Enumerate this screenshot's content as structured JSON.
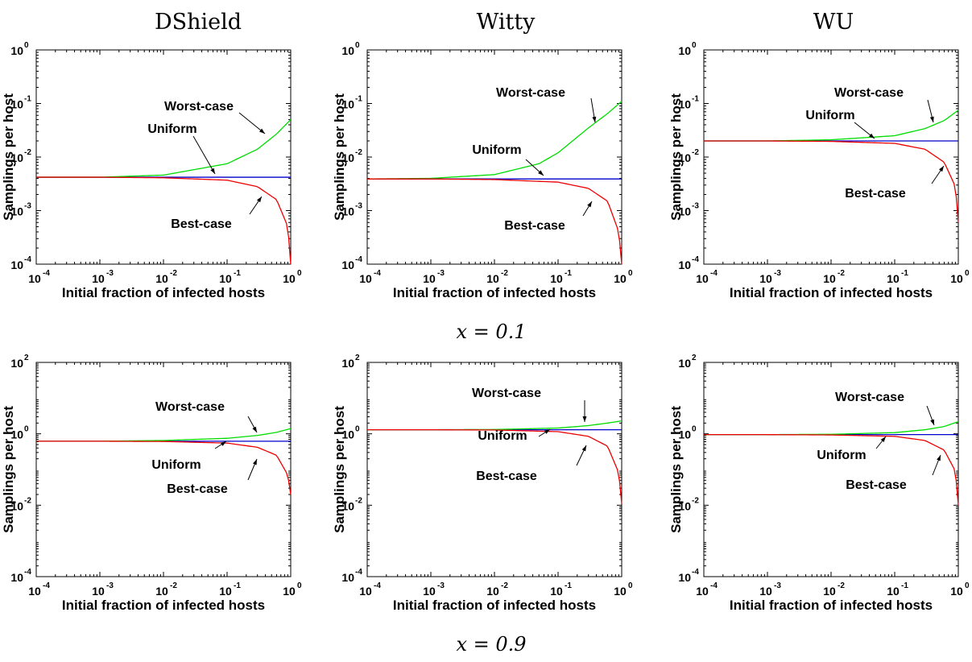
{
  "columns": [
    "DShield",
    "Witty",
    "WU"
  ],
  "rows": [
    {
      "label": "x = 0.1"
    },
    {
      "label": "x = 0.9"
    }
  ],
  "colors": {
    "worst": "#00dd00",
    "uniform": "#0000cc",
    "best": "#ee0000",
    "axes": "#000000"
  },
  "chart_data": [
    {
      "type": "line",
      "column": "DShield",
      "row": "x = 0.1",
      "xlabel": "Initial fraction of infected hosts",
      "ylabel": "Samplings per host",
      "xscale": "log",
      "yscale": "log",
      "xlim": [
        0.0001,
        1
      ],
      "ylim": [
        0.0001,
        1
      ],
      "series": [
        {
          "name": "Worst-case",
          "x": [
            0.0001,
            0.001,
            0.01,
            0.1,
            0.3,
            0.6,
            1
          ],
          "y": [
            0.0042,
            0.0042,
            0.0046,
            0.0075,
            0.014,
            0.027,
            0.05
          ]
        },
        {
          "name": "Uniform",
          "x": [
            0.0001,
            1
          ],
          "y": [
            0.0042,
            0.0042
          ]
        },
        {
          "name": "Best-case",
          "x": [
            0.0001,
            0.001,
            0.01,
            0.1,
            0.3,
            0.6,
            0.9,
            1
          ],
          "y": [
            0.0042,
            0.0042,
            0.0041,
            0.0037,
            0.0028,
            0.0016,
            0.0005,
            0.0001
          ]
        }
      ]
    },
    {
      "type": "line",
      "column": "Witty",
      "row": "x = 0.1",
      "xlabel": "Initial fraction of infected hosts",
      "ylabel": "Samplings per host",
      "xscale": "log",
      "yscale": "log",
      "xlim": [
        0.0001,
        1
      ],
      "ylim": [
        0.0001,
        1
      ],
      "series": [
        {
          "name": "Worst-case",
          "x": [
            0.0001,
            0.001,
            0.01,
            0.05,
            0.1,
            0.3,
            0.6,
            1
          ],
          "y": [
            0.0039,
            0.004,
            0.0047,
            0.0075,
            0.012,
            0.035,
            0.065,
            0.11
          ]
        },
        {
          "name": "Uniform",
          "x": [
            0.0001,
            1
          ],
          "y": [
            0.0039,
            0.0039
          ]
        },
        {
          "name": "Best-case",
          "x": [
            0.0001,
            0.001,
            0.01,
            0.1,
            0.3,
            0.6,
            0.9,
            1
          ],
          "y": [
            0.0039,
            0.0039,
            0.0038,
            0.0034,
            0.0026,
            0.0015,
            0.0004,
            0.0001
          ]
        }
      ]
    },
    {
      "type": "line",
      "column": "WU",
      "row": "x = 0.1",
      "xlabel": "Initial fraction of infected hosts",
      "ylabel": "Samplings per host",
      "xscale": "log",
      "yscale": "log",
      "xlim": [
        0.0001,
        1
      ],
      "ylim": [
        0.0001,
        1
      ],
      "series": [
        {
          "name": "Worst-case",
          "x": [
            0.0001,
            0.001,
            0.01,
            0.1,
            0.3,
            0.6,
            1
          ],
          "y": [
            0.02,
            0.02,
            0.021,
            0.025,
            0.034,
            0.048,
            0.075
          ]
        },
        {
          "name": "Uniform",
          "x": [
            0.0001,
            1
          ],
          "y": [
            0.02,
            0.02
          ]
        },
        {
          "name": "Best-case",
          "x": [
            0.0001,
            0.001,
            0.01,
            0.1,
            0.3,
            0.6,
            0.9,
            1
          ],
          "y": [
            0.02,
            0.02,
            0.0196,
            0.018,
            0.014,
            0.008,
            0.0028,
            0.0006
          ]
        }
      ]
    },
    {
      "type": "line",
      "column": "DShield",
      "row": "x = 0.9",
      "xlabel": "Initial fraction of infected hosts",
      "ylabel": "Samplings per host",
      "xscale": "log",
      "yscale": "log",
      "xlim": [
        0.0001,
        1
      ],
      "ylim": [
        0.0001,
        100
      ],
      "series": [
        {
          "name": "Worst-case",
          "x": [
            0.0001,
            0.001,
            0.01,
            0.1,
            0.3,
            0.6,
            1
          ],
          "y": [
            0.62,
            0.62,
            0.65,
            0.75,
            0.9,
            1.1,
            1.4
          ]
        },
        {
          "name": "Uniform",
          "x": [
            0.0001,
            1
          ],
          "y": [
            0.62,
            0.62
          ]
        },
        {
          "name": "Best-case",
          "x": [
            0.0001,
            0.001,
            0.01,
            0.1,
            0.3,
            0.6,
            0.9,
            1
          ],
          "y": [
            0.62,
            0.62,
            0.61,
            0.55,
            0.42,
            0.25,
            0.07,
            0.02
          ]
        }
      ]
    },
    {
      "type": "line",
      "column": "Witty",
      "row": "x = 0.9",
      "xlabel": "Initial fraction of infected hosts",
      "ylabel": "Samplings per host",
      "xscale": "log",
      "yscale": "log",
      "xlim": [
        0.0001,
        1
      ],
      "ylim": [
        0.0001,
        100
      ],
      "series": [
        {
          "name": "Worst-case",
          "x": [
            0.0001,
            0.001,
            0.01,
            0.1,
            0.3,
            0.6,
            1
          ],
          "y": [
            1.3,
            1.3,
            1.32,
            1.45,
            1.7,
            2.0,
            2.3
          ]
        },
        {
          "name": "Uniform",
          "x": [
            0.0001,
            1
          ],
          "y": [
            1.3,
            1.3
          ]
        },
        {
          "name": "Best-case",
          "x": [
            0.0001,
            0.001,
            0.01,
            0.1,
            0.3,
            0.6,
            0.9,
            1
          ],
          "y": [
            1.3,
            1.3,
            1.28,
            1.15,
            0.85,
            0.45,
            0.08,
            0.011
          ]
        }
      ]
    },
    {
      "type": "line",
      "column": "WU",
      "row": "x = 0.9",
      "xlabel": "Initial fraction of infected hosts",
      "ylabel": "Samplings per host",
      "xscale": "log",
      "yscale": "log",
      "xlim": [
        0.0001,
        1
      ],
      "ylim": [
        0.0001,
        100
      ],
      "series": [
        {
          "name": "Worst-case",
          "x": [
            0.0001,
            0.001,
            0.01,
            0.1,
            0.3,
            0.6,
            1
          ],
          "y": [
            0.95,
            0.95,
            0.97,
            1.08,
            1.3,
            1.6,
            2.2
          ]
        },
        {
          "name": "Uniform",
          "x": [
            0.0001,
            1
          ],
          "y": [
            0.95,
            0.95
          ]
        },
        {
          "name": "Best-case",
          "x": [
            0.0001,
            0.001,
            0.01,
            0.1,
            0.3,
            0.6,
            0.9,
            1
          ],
          "y": [
            0.95,
            0.95,
            0.93,
            0.85,
            0.65,
            0.35,
            0.09,
            0.01
          ]
        }
      ]
    }
  ]
}
